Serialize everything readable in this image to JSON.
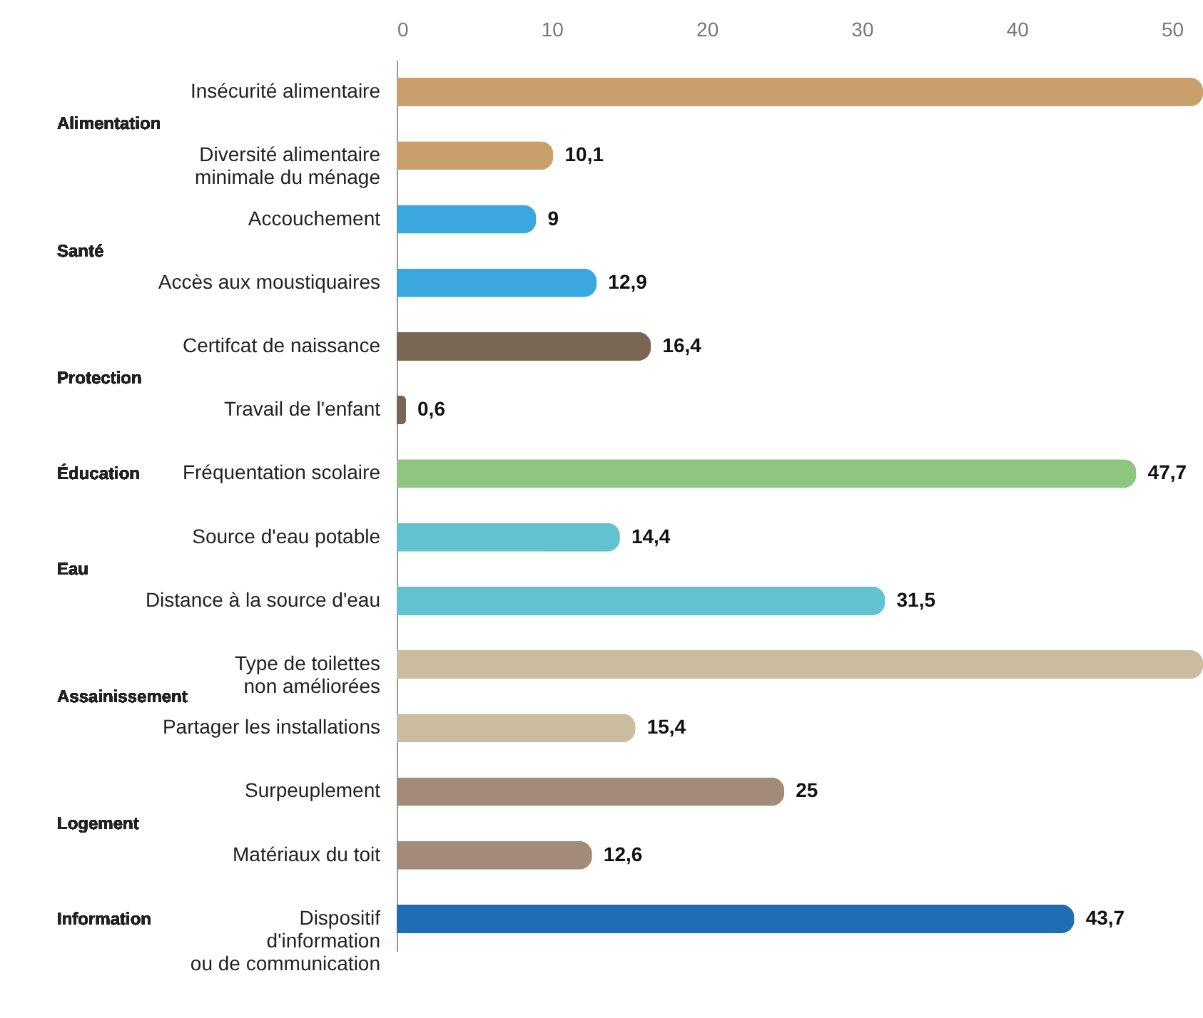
{
  "chart_data": {
    "type": "bar",
    "orientation": "horizontal",
    "categories": [
      "Insécurité alimentaire",
      "Diversité alimentaire\nminimale du ménage",
      "Accouchement",
      "Accès aux moustiquaires",
      "Certifcat de naissance",
      "Travail de l'enfant",
      "Fréquentation scolaire",
      "Source d'eau potable",
      "Distance à la source d'eau",
      "Type de toilettes\nnon améliorées",
      "Partager les installations",
      "Surpeuplement",
      "Matériaux du toit",
      "Dispositif\nd'information\nou de communication"
    ],
    "values": [
      52,
      10.1,
      9,
      12.9,
      16.4,
      0.6,
      47.7,
      14.4,
      31.5,
      52,
      15.4,
      25,
      12.6,
      43.7
    ],
    "value_labels": [
      null,
      "10,1",
      "9",
      "12,9",
      "16,4",
      "0,6",
      "47,7",
      "14,4",
      "31,5",
      null,
      "15,4",
      "25",
      "12,6",
      "43,7"
    ],
    "colors": [
      "#c9a06b",
      "#c9a06b",
      "#3aa8df",
      "#3aa8df",
      "#7a6753",
      "#7a6753",
      "#8dc67e",
      "#62c2d2",
      "#62c2d2",
      "#cbbb9f",
      "#cbbb9f",
      "#a38b7a",
      "#a38b7a",
      "#1f6db5"
    ],
    "xlim": [
      0,
      52
    ],
    "xticks": [
      0,
      10,
      20,
      30,
      40,
      50
    ],
    "grid": false,
    "annotations": [
      "Alimentation",
      "Santé",
      "Protection",
      "Éducation",
      "Eau",
      "Assainissement",
      "Logement",
      "Information"
    ]
  }
}
